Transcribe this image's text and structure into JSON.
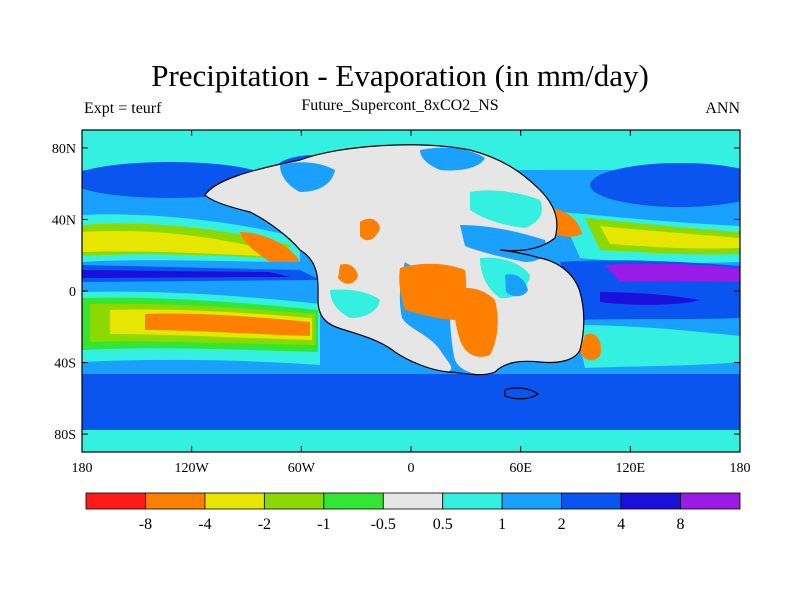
{
  "title": "Precipitation - Evaporation (in mm/day)",
  "subtitle": "Future_Supercont_8xCO2_NS",
  "left_label": "Expt = teurf",
  "right_label": "ANN",
  "x_ticks": [
    "180",
    "120W",
    "60W",
    "0",
    "60E",
    "120E",
    "180"
  ],
  "y_ticks": [
    "80N",
    "40N",
    "0",
    "40S",
    "80S"
  ],
  "colorbar": {
    "colors": [
      "#ff1a1a",
      "#ff8000",
      "#e6e600",
      "#8cd900",
      "#33e633",
      "#e6e6e6",
      "#33f0e0",
      "#1aa0ff",
      "#0a55f0",
      "#1a10d9",
      "#9a1ae6"
    ],
    "labels": [
      "-8",
      "-4",
      "-2",
      "-1",
      "-0.5",
      "0.5",
      "1",
      "2",
      "4",
      "8"
    ]
  },
  "colors": {
    "ocean_dry": "#e6e6e6",
    "coast": "#000000"
  }
}
